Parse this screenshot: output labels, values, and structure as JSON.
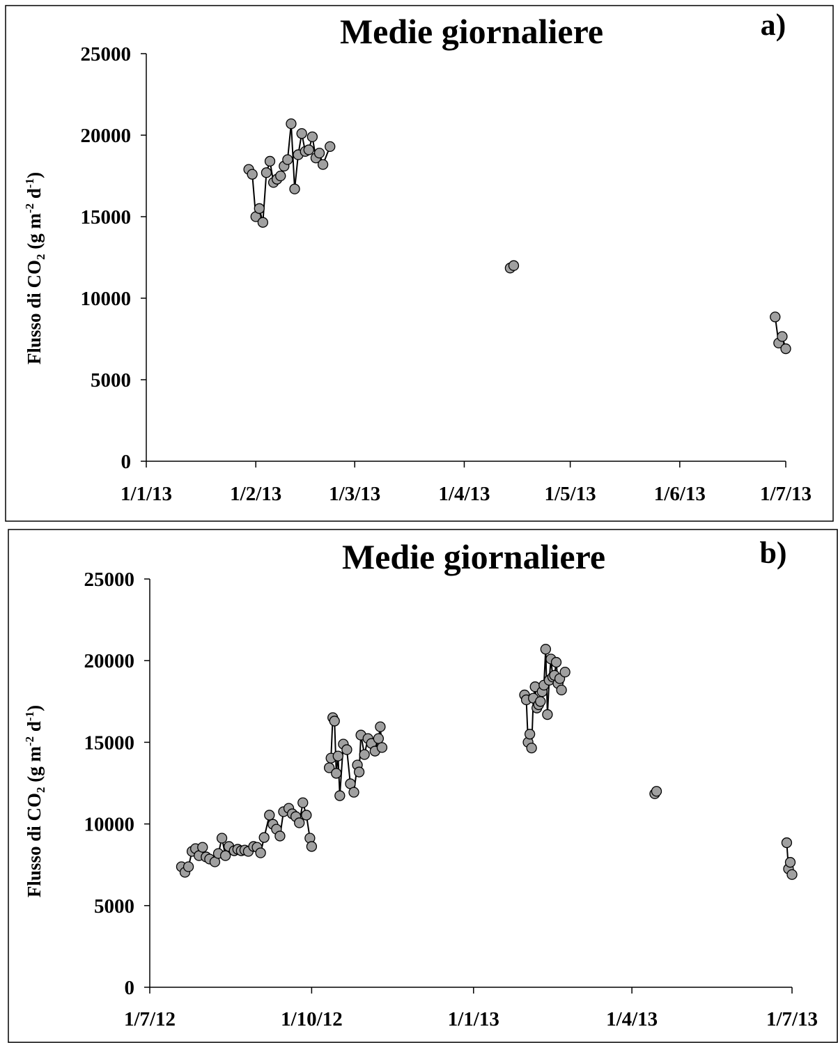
{
  "chart_data": [
    {
      "type": "scatter",
      "title": "Medie giornaliere",
      "panel_label": "a)",
      "y_label": [
        "Flusso di CO",
        "2",
        " (g m",
        "-2",
        " d",
        "-1",
        ")"
      ],
      "xlim": [
        "1/1/13",
        "1/7/13"
      ],
      "xticks": [
        "1/1/13",
        "1/2/13",
        "1/3/13",
        "1/4/13",
        "1/5/13",
        "1/6/13",
        "1/7/13"
      ],
      "ylim": [
        0,
        25000
      ],
      "yticks": [
        0,
        5000,
        10000,
        15000,
        20000,
        25000
      ],
      "series": [
        {
          "color": "#a0a0a0",
          "x": [
            "30/1/13",
            "31/1/13",
            "1/2/13",
            "2/2/13",
            "3/2/13",
            "4/2/13",
            "5/2/13",
            "6/2/13",
            "7/2/13",
            "8/2/13",
            "9/2/13",
            "10/2/13",
            "11/2/13",
            "12/2/13",
            "13/2/13",
            "14/2/13",
            "15/2/13",
            "16/2/13",
            "17/2/13",
            "18/2/13",
            "19/2/13",
            "20/2/13",
            "22/2/13",
            "14/4/13",
            "15/4/13",
            "28/6/13",
            "29/6/13",
            "30/6/13",
            "1/7/13"
          ],
          "values": [
            17900,
            17600,
            15000,
            15500,
            14650,
            17700,
            18400,
            17100,
            17300,
            17500,
            18100,
            18500,
            20700,
            16700,
            18800,
            20100,
            19000,
            19100,
            19900,
            18600,
            18900,
            18200,
            19300,
            11850,
            12000,
            8850,
            7250,
            7650,
            6900
          ]
        }
      ]
    },
    {
      "type": "scatter",
      "title": "Medie giornaliere",
      "panel_label": "b)",
      "y_label": [
        "Flusso di CO",
        "2",
        " (g m",
        "-2",
        " d",
        "-1",
        ")"
      ],
      "xlim": [
        "1/7/12",
        "1/7/13"
      ],
      "xticks": [
        "1/7/12",
        "1/10/12",
        "1/1/13",
        "1/4/13",
        "1/7/13"
      ],
      "ylim": [
        0,
        25000
      ],
      "yticks": [
        0,
        5000,
        10000,
        15000,
        20000,
        25000
      ],
      "series": [
        {
          "color": "#a0a0a0",
          "x": [
            "19/7/12",
            "21/7/12",
            "23/7/12",
            "25/7/12",
            "27/7/12",
            "29/7/12",
            "31/7/12",
            "2/8/12",
            "4/8/12",
            "7/8/12",
            "9/8/12",
            "11/8/12",
            "13/8/12",
            "15/8/12",
            "18/8/12",
            "20/8/12",
            "22/8/12",
            "24/8/12",
            "26/8/12",
            "29/8/12",
            "31/8/12",
            "2/9/12",
            "4/9/12",
            "7/9/12",
            "9/9/12",
            "11/9/12",
            "13/9/12",
            "15/9/12",
            "18/9/12",
            "20/9/12",
            "22/9/12",
            "24/9/12",
            "26/9/12",
            "28/9/12",
            "30/9/12",
            "1/10/12",
            "11/10/12",
            "12/10/12",
            "13/10/12",
            "14/10/12",
            "15/10/12",
            "16/10/12",
            "17/10/12",
            "19/10/12",
            "21/10/12",
            "23/10/12",
            "25/10/12",
            "27/10/12",
            "28/10/12",
            "29/10/12",
            "31/10/12",
            "2/11/12",
            "4/11/12",
            "6/11/12",
            "8/11/12",
            "9/11/12",
            "10/11/12",
            "30/1/13",
            "31/1/13",
            "1/2/13",
            "2/2/13",
            "3/2/13",
            "4/2/13",
            "5/2/13",
            "6/2/13",
            "7/2/13",
            "8/2/13",
            "9/2/13",
            "10/2/13",
            "11/2/13",
            "12/2/13",
            "13/2/13",
            "14/2/13",
            "15/2/13",
            "16/2/13",
            "17/2/13",
            "18/2/13",
            "19/2/13",
            "20/2/13",
            "22/2/13",
            "14/4/13",
            "15/4/13",
            "28/6/13",
            "29/6/13",
            "30/6/13",
            "1/7/13"
          ],
          "values": [
            7380,
            7040,
            7380,
            8320,
            8490,
            8060,
            8570,
            7980,
            7850,
            7680,
            8190,
            9130,
            8060,
            8620,
            8360,
            8450,
            8360,
            8400,
            8320,
            8620,
            8570,
            8230,
            9170,
            10540,
            9980,
            9680,
            9260,
            10750,
            10960,
            10620,
            10450,
            10070,
            11300,
            10540,
            9130,
            8620,
            13440,
            14030,
            16510,
            16300,
            13100,
            14160,
            11730,
            14890,
            14550,
            12460,
            11940,
            13610,
            13180,
            15440,
            14250,
            15230,
            14930,
            14460,
            15230,
            15950,
            14680,
            17900,
            17600,
            15000,
            15500,
            14650,
            17700,
            18400,
            17100,
            17300,
            17500,
            18100,
            18500,
            20700,
            16700,
            18800,
            20100,
            19000,
            19100,
            19900,
            18600,
            18900,
            18200,
            19300,
            11850,
            12000,
            8850,
            7250,
            7650,
            6900
          ]
        }
      ]
    }
  ]
}
